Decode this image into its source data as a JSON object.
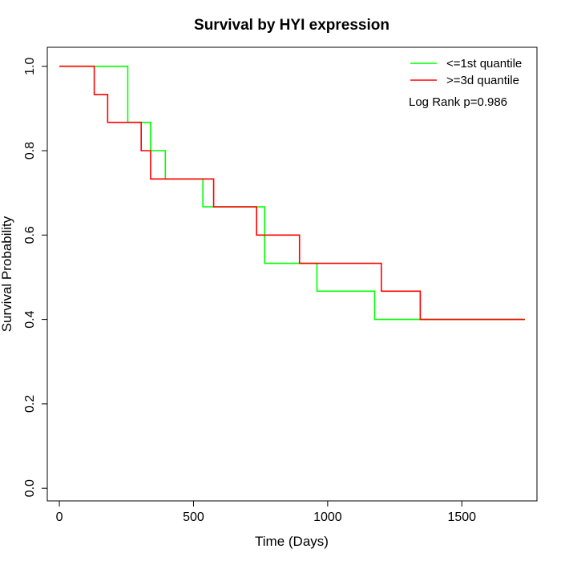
{
  "chart_data": {
    "type": "line",
    "title": "Survival by HYI expression",
    "xlabel": "Time (Days)",
    "ylabel": "Survival Probability",
    "xlim": [
      -45,
      1780
    ],
    "ylim": [
      -0.03,
      1.045
    ],
    "x_ticks": [
      0,
      500,
      1000,
      1500
    ],
    "y_ticks": [
      0.0,
      0.2,
      0.4,
      0.6,
      0.8,
      1.0
    ],
    "x_tick_labels": [
      "0",
      "500",
      "1000",
      "1500"
    ],
    "y_tick_labels": [
      "0.0",
      "0.2",
      "0.4",
      "0.6",
      "0.8",
      "1.0"
    ],
    "grid": false,
    "legend_position": "top-right",
    "annotation": "Log Rank p=0.986",
    "series": [
      {
        "name": "<=1st quantile",
        "color": "#00ff00",
        "step": true,
        "x": [
          0,
          255,
          340,
          395,
          535,
          765,
          960,
          1175,
          1735
        ],
        "y": [
          1.0,
          0.867,
          0.8,
          0.733,
          0.667,
          0.533,
          0.467,
          0.4,
          0.4
        ]
      },
      {
        "name": ">=3d quantile",
        "color": "#ff0000",
        "step": true,
        "x": [
          0,
          130,
          180,
          305,
          340,
          575,
          735,
          895,
          1200,
          1345,
          1735
        ],
        "y": [
          1.0,
          0.933,
          0.867,
          0.8,
          0.733,
          0.667,
          0.6,
          0.533,
          0.467,
          0.4,
          0.4
        ]
      }
    ]
  }
}
